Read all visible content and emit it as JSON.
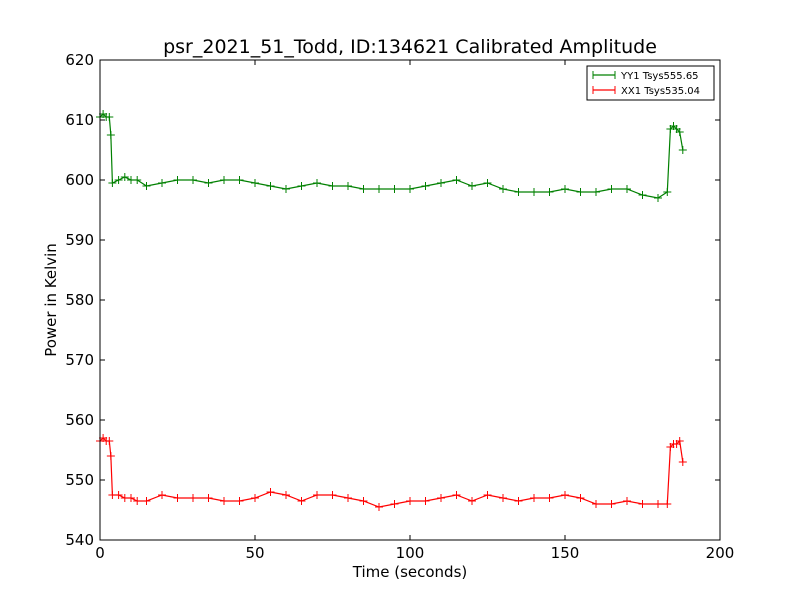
{
  "chart_data": {
    "type": "line",
    "title": "psr_2021_51_Todd, ID:134621 Calibrated Amplitude",
    "xlabel": "Time (seconds)",
    "ylabel": "Power in Kelvin",
    "xlim": [
      0,
      200
    ],
    "ylim": [
      540,
      620
    ],
    "xticks": [
      "0",
      "50",
      "100",
      "150",
      "200"
    ],
    "yticks": [
      "540",
      "550",
      "560",
      "570",
      "580",
      "590",
      "600",
      "610",
      "620"
    ],
    "grid": false,
    "legend": "top-right",
    "marker": "+",
    "series": [
      {
        "name": "YY1 Tsys555.65",
        "color": "#008000",
        "x": [
          0,
          1,
          2,
          3,
          3.5,
          4,
          6,
          8,
          10,
          12,
          15,
          20,
          25,
          30,
          35,
          40,
          45,
          50,
          55,
          60,
          65,
          70,
          75,
          80,
          85,
          90,
          95,
          100,
          105,
          110,
          115,
          120,
          125,
          130,
          135,
          140,
          145,
          150,
          155,
          160,
          165,
          170,
          175,
          180,
          183,
          184,
          185,
          186,
          187,
          188
        ],
        "y": [
          610.5,
          611,
          610.5,
          610.5,
          607.5,
          599.5,
          600,
          600.5,
          600,
          600,
          599,
          599.5,
          600,
          600,
          599.5,
          600,
          600,
          599.5,
          599,
          598.5,
          599,
          599.5,
          599,
          599,
          598.5,
          598.5,
          598.5,
          598.5,
          599,
          599.5,
          600,
          599,
          599.5,
          598.5,
          598,
          598,
          598,
          598.5,
          598,
          598,
          598.5,
          598.5,
          597.5,
          597,
          598,
          608.5,
          609,
          608.5,
          608,
          605
        ]
      },
      {
        "name": "XX1 Tsys535.04",
        "color": "#ff0000",
        "x": [
          0,
          1,
          2,
          3,
          3.5,
          4,
          6,
          8,
          10,
          12,
          15,
          20,
          25,
          30,
          35,
          40,
          45,
          50,
          55,
          60,
          65,
          70,
          75,
          80,
          85,
          90,
          95,
          100,
          105,
          110,
          115,
          120,
          125,
          130,
          135,
          140,
          145,
          150,
          155,
          160,
          165,
          170,
          175,
          180,
          183,
          184,
          185,
          186,
          187,
          188
        ],
        "y": [
          556.5,
          557,
          556.5,
          556.5,
          554,
          547.5,
          547.5,
          547,
          547,
          546.5,
          546.5,
          547.5,
          547,
          547,
          547,
          546.5,
          546.5,
          547,
          548,
          547.5,
          546.5,
          547.5,
          547.5,
          547,
          546.5,
          545.5,
          546,
          546.5,
          546.5,
          547,
          547.5,
          546.5,
          547.5,
          547,
          546.5,
          547,
          547,
          547.5,
          547,
          546,
          546,
          546.5,
          546,
          546,
          546,
          555.5,
          556,
          556,
          556.5,
          553
        ]
      }
    ]
  }
}
